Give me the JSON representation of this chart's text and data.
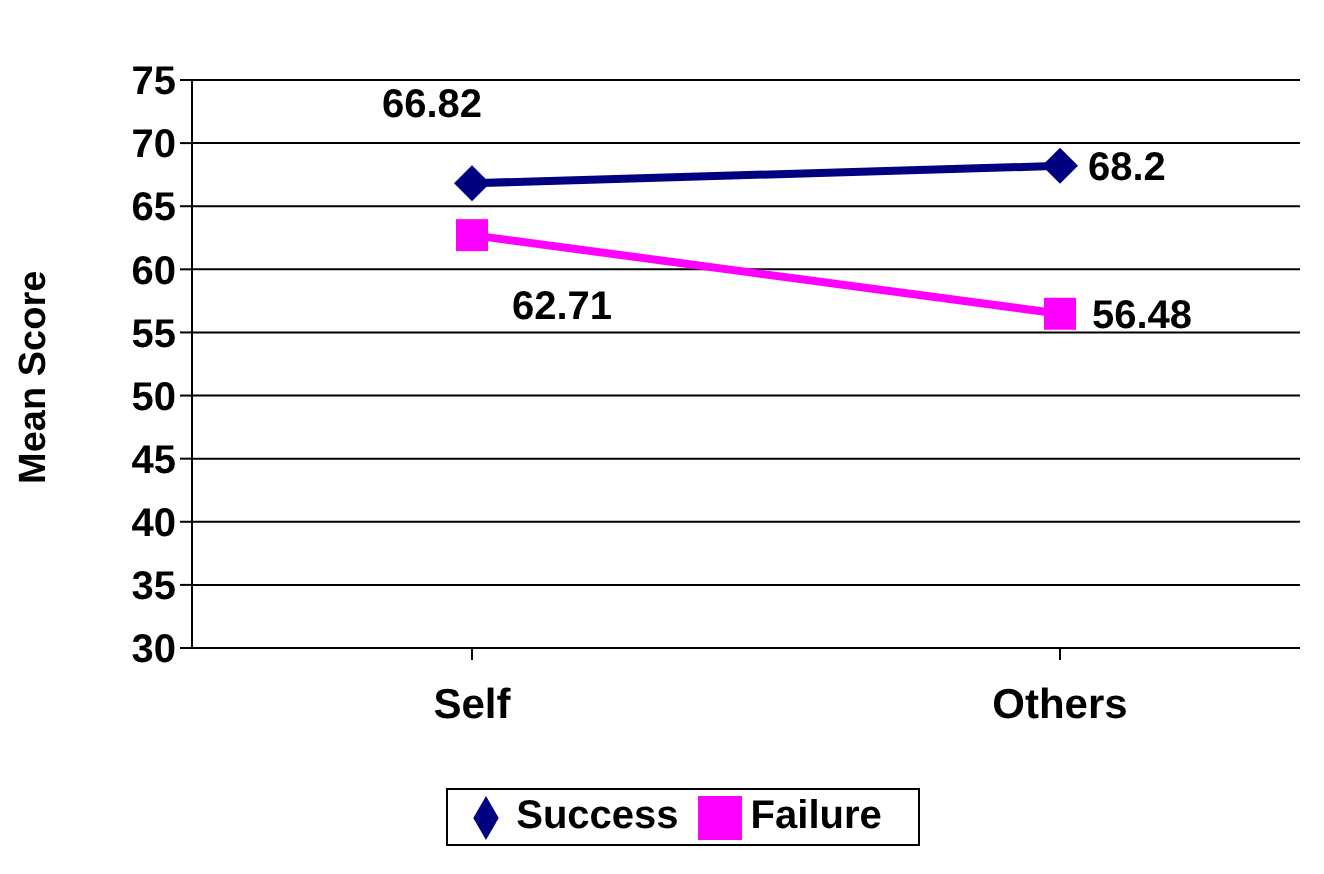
{
  "chart_data": {
    "type": "line",
    "ylabel": "Mean Score",
    "categories": [
      "Self",
      "Others"
    ],
    "series": [
      {
        "name": "Success",
        "color": "#000080",
        "values": [
          66.82,
          68.2
        ],
        "marker": "diamond"
      },
      {
        "name": "Failure",
        "color": "#ff00ff",
        "values": [
          62.71,
          56.48
        ],
        "marker": "square"
      }
    ],
    "ylim": [
      30,
      75
    ],
    "yticks": [
      30,
      35,
      40,
      45,
      50,
      55,
      60,
      65,
      70,
      75
    ],
    "grid": "y",
    "legend": "bottom",
    "data_labels": true
  }
}
